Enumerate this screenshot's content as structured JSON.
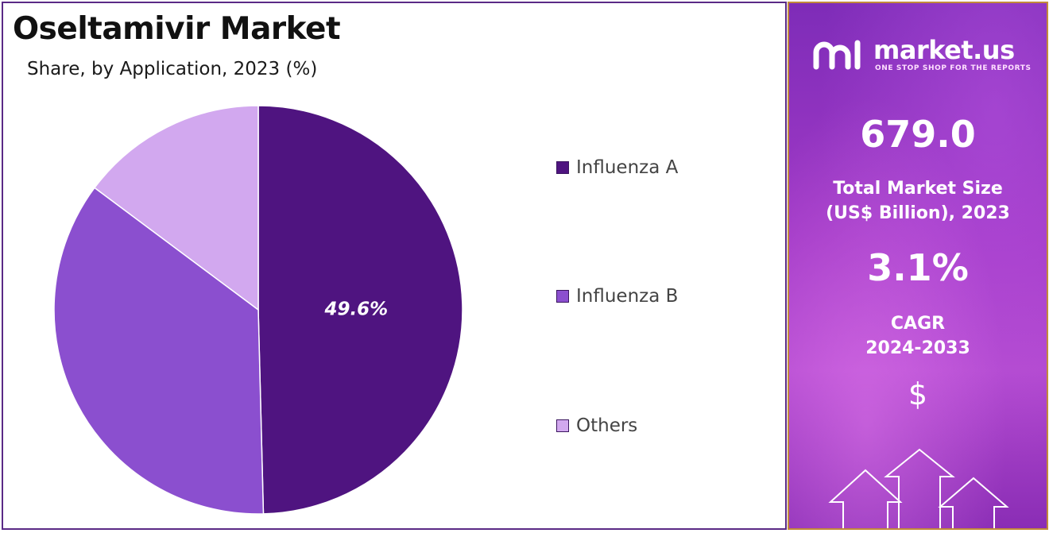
{
  "header": {
    "title": "Oseltamivir Market",
    "subtitle": "Share, by Application, 2023 (%)"
  },
  "chart_data": {
    "type": "pie",
    "title": "Oseltamivir Market",
    "subtitle": "Share, by Application, 2023 (%)",
    "categories": [
      "Influenza A",
      "Influenza B",
      "Others"
    ],
    "values": [
      49.6,
      35.6,
      14.8
    ],
    "data_labels": [
      "49.6%",
      "",
      ""
    ],
    "colors": [
      "#4f1480",
      "#8b4fcf",
      "#d2a8ef"
    ],
    "legend_position": "right"
  },
  "sidebar": {
    "logo_text": "market.us",
    "logo_tagline": "ONE STOP SHOP FOR THE REPORTS",
    "market_size_value": "679.0",
    "market_size_label_1": "Total Market Size",
    "market_size_label_2": "(US$ Billion), 2023",
    "cagr_value": "3.1%",
    "cagr_label_1": "CAGR",
    "cagr_label_2": "2024-2033",
    "currency_symbol": "$"
  }
}
